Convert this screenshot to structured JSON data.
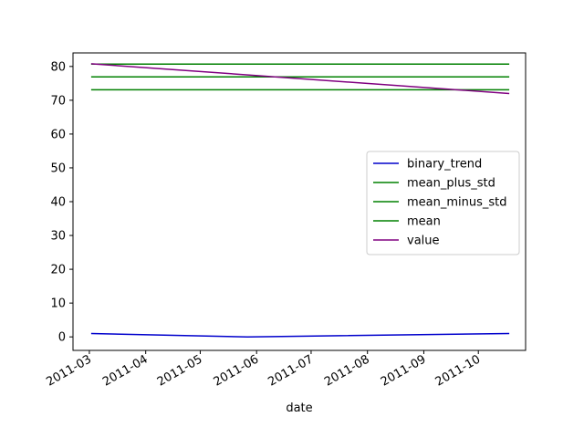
{
  "chart_data": {
    "type": "line",
    "xlabel": "date",
    "ylabel": "",
    "title": "",
    "x_axis_type": "date",
    "xlim": [
      "2011-02-20",
      "2011-10-27"
    ],
    "ylim": [
      -4,
      84
    ],
    "x_ticks": [
      "2011-03",
      "2011-04",
      "2011-05",
      "2011-06",
      "2011-07",
      "2011-08",
      "2011-09",
      "2011-10"
    ],
    "y_ticks": [
      0,
      10,
      20,
      30,
      40,
      50,
      60,
      70,
      80
    ],
    "grid": false,
    "legend_position": "center-right",
    "series": [
      {
        "name": "binary_trend",
        "color": "#0000cc",
        "points": [
          {
            "x": "2011-03-02",
            "y": 1
          },
          {
            "x": "2011-05-27",
            "y": 0
          },
          {
            "x": "2011-10-18",
            "y": 1
          }
        ]
      },
      {
        "name": "mean_plus_std",
        "color": "#008000",
        "points": [
          {
            "x": "2011-03-02",
            "y": 80.7
          },
          {
            "x": "2011-10-18",
            "y": 80.7
          }
        ]
      },
      {
        "name": "mean_minus_std",
        "color": "#008000",
        "points": [
          {
            "x": "2011-03-02",
            "y": 73.1
          },
          {
            "x": "2011-10-18",
            "y": 73.1
          }
        ]
      },
      {
        "name": "mean",
        "color": "#008000",
        "points": [
          {
            "x": "2011-03-02",
            "y": 76.9
          },
          {
            "x": "2011-10-18",
            "y": 76.9
          }
        ]
      },
      {
        "name": "value",
        "color": "#800080",
        "points": [
          {
            "x": "2011-03-02",
            "y": 80.8
          },
          {
            "x": "2011-10-18",
            "y": 72.0
          }
        ]
      }
    ]
  }
}
